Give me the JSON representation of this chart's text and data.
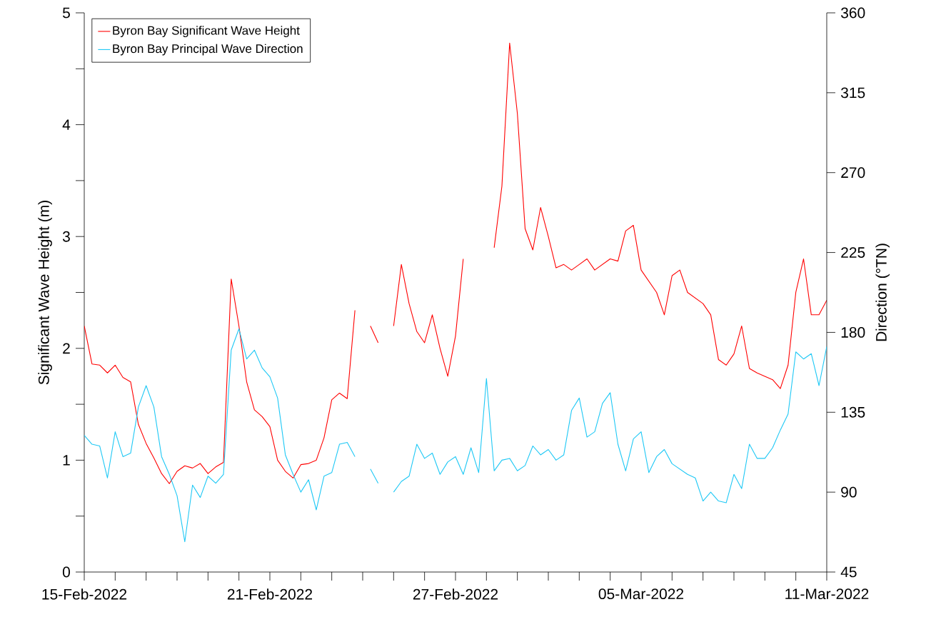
{
  "chart_data": {
    "type": "line",
    "xlabel": null,
    "ylabel": "Significant Wave Height (m)",
    "y2label": "Direction (°TN)",
    "x": [
      "2022-02-15T00:00",
      "2022-02-15T06:00",
      "2022-02-15T12:00",
      "2022-02-15T18:00",
      "2022-02-16T00:00",
      "2022-02-16T06:00",
      "2022-02-16T12:00",
      "2022-02-16T18:00",
      "2022-02-17T00:00",
      "2022-02-17T06:00",
      "2022-02-17T12:00",
      "2022-02-17T18:00",
      "2022-02-18T00:00",
      "2022-02-18T06:00",
      "2022-02-18T12:00",
      "2022-02-18T18:00",
      "2022-02-19T00:00",
      "2022-02-19T06:00",
      "2022-02-19T12:00",
      "2022-02-19T18:00",
      "2022-02-20T00:00",
      "2022-02-20T06:00",
      "2022-02-20T12:00",
      "2022-02-20T18:00",
      "2022-02-21T00:00",
      "2022-02-21T06:00",
      "2022-02-21T12:00",
      "2022-02-21T18:00",
      "2022-02-22T00:00",
      "2022-02-22T06:00",
      "2022-02-22T12:00",
      "2022-02-22T18:00",
      "2022-02-23T00:00",
      "2022-02-23T06:00",
      "2022-02-23T12:00",
      "2022-02-23T18:00",
      "2022-02-24T00:00",
      "2022-02-24T06:00",
      "2022-02-24T12:00",
      "2022-02-24T18:00",
      "2022-02-25T00:00",
      "2022-02-25T06:00",
      "2022-02-25T12:00",
      "2022-02-25T18:00",
      "2022-02-26T00:00",
      "2022-02-26T06:00",
      "2022-02-26T12:00",
      "2022-02-26T18:00",
      "2022-02-27T00:00",
      "2022-02-27T06:00",
      "2022-02-27T12:00",
      "2022-02-27T18:00",
      "2022-02-28T00:00",
      "2022-02-28T06:00",
      "2022-02-28T12:00",
      "2022-02-28T18:00",
      "2022-03-01T00:00",
      "2022-03-01T06:00",
      "2022-03-01T12:00",
      "2022-03-01T18:00",
      "2022-03-02T00:00",
      "2022-03-02T06:00",
      "2022-03-02T12:00",
      "2022-03-02T18:00",
      "2022-03-03T00:00",
      "2022-03-03T06:00",
      "2022-03-03T12:00",
      "2022-03-03T18:00",
      "2022-03-04T00:00",
      "2022-03-04T06:00",
      "2022-03-04T12:00",
      "2022-03-04T18:00",
      "2022-03-05T00:00",
      "2022-03-05T06:00",
      "2022-03-05T12:00",
      "2022-03-05T18:00",
      "2022-03-06T00:00",
      "2022-03-06T06:00",
      "2022-03-06T12:00",
      "2022-03-06T18:00",
      "2022-03-07T00:00",
      "2022-03-07T06:00",
      "2022-03-07T12:00",
      "2022-03-07T18:00",
      "2022-03-08T00:00",
      "2022-03-08T06:00",
      "2022-03-08T12:00",
      "2022-03-08T18:00",
      "2022-03-09T00:00",
      "2022-03-09T06:00",
      "2022-03-09T12:00",
      "2022-03-09T18:00",
      "2022-03-10T00:00",
      "2022-03-10T06:00",
      "2022-03-10T12:00",
      "2022-03-10T18:00",
      "2022-03-11T00:00"
    ],
    "series": [
      {
        "name": "Byron Bay Significant Wave Height",
        "color": "#ff0000",
        "values": [
          2.2,
          1.86,
          1.85,
          1.78,
          1.85,
          1.74,
          1.7,
          1.32,
          1.15,
          1.02,
          0.88,
          0.79,
          0.9,
          0.95,
          0.93,
          0.97,
          0.88,
          0.94,
          0.98,
          2.62,
          2.2,
          1.7,
          1.45,
          1.39,
          1.3,
          1.0,
          0.9,
          0.84,
          0.96,
          0.97,
          1.0,
          1.2,
          1.54,
          1.6,
          1.55,
          2.34,
          null,
          2.2,
          2.05,
          null,
          2.2,
          2.75,
          2.4,
          2.15,
          2.05,
          2.3,
          2.0,
          1.75,
          2.11,
          2.8,
          null,
          null,
          null,
          2.9,
          3.45,
          4.73,
          4.1,
          3.07,
          2.88,
          3.26,
          3.0,
          2.72,
          2.75,
          2.7,
          2.75,
          2.8,
          2.7,
          2.75,
          2.8,
          2.78,
          3.05,
          3.1,
          2.7,
          2.6,
          2.5,
          2.3,
          2.65,
          2.7,
          2.5,
          2.45,
          2.4,
          2.3,
          1.9,
          1.85,
          1.95,
          2.2,
          1.82,
          1.78,
          1.75,
          1.72,
          1.64,
          1.85,
          2.5,
          2.8,
          2.3,
          2.3,
          2.43
        ]
      },
      {
        "name": "Byron Bay Principal Wave Direction",
        "color": "#1ec8f5",
        "axis": "y2",
        "values": [
          122,
          117,
          116,
          98,
          124,
          110,
          112,
          138,
          150,
          138,
          110,
          100,
          88,
          62,
          94,
          87,
          99,
          95,
          100,
          170,
          182,
          165,
          170,
          160,
          155,
          143,
          111,
          100,
          90,
          97,
          80,
          99,
          101,
          117,
          118,
          110,
          null,
          103,
          95,
          null,
          90,
          96,
          99,
          117,
          109,
          112,
          100,
          107,
          110,
          100,
          115,
          101,
          154,
          102,
          108,
          109,
          102,
          105,
          116,
          111,
          114,
          108,
          111,
          136,
          143,
          121,
          124,
          140,
          146,
          117,
          102,
          120,
          124,
          101,
          110,
          114,
          106,
          103,
          100,
          98,
          85,
          90,
          85,
          84,
          100,
          92,
          117,
          109,
          109,
          115,
          125,
          134,
          169,
          165,
          168,
          150,
          172
        ]
      }
    ],
    "xlim": [
      "2022-02-15",
      "2022-03-11"
    ],
    "xticks": [
      {
        "value": "2022-02-15",
        "label": "15-Feb-2022"
      },
      {
        "value": "2022-02-16",
        "label": null
      },
      {
        "value": "2022-02-17",
        "label": null
      },
      {
        "value": "2022-02-18",
        "label": null
      },
      {
        "value": "2022-02-19",
        "label": null
      },
      {
        "value": "2022-02-20",
        "label": null
      },
      {
        "value": "2022-02-21",
        "label": "21-Feb-2022"
      },
      {
        "value": "2022-02-22",
        "label": null
      },
      {
        "value": "2022-02-23",
        "label": null
      },
      {
        "value": "2022-02-24",
        "label": null
      },
      {
        "value": "2022-02-25",
        "label": null
      },
      {
        "value": "2022-02-26",
        "label": null
      },
      {
        "value": "2022-02-27",
        "label": "27-Feb-2022"
      },
      {
        "value": "2022-02-28",
        "label": null
      },
      {
        "value": "2022-03-01",
        "label": null
      },
      {
        "value": "2022-03-02",
        "label": null
      },
      {
        "value": "2022-03-03",
        "label": null
      },
      {
        "value": "2022-03-04",
        "label": null
      },
      {
        "value": "2022-03-05",
        "label": "05-Mar-2022"
      },
      {
        "value": "2022-03-06",
        "label": null
      },
      {
        "value": "2022-03-07",
        "label": null
      },
      {
        "value": "2022-03-08",
        "label": null
      },
      {
        "value": "2022-03-09",
        "label": null
      },
      {
        "value": "2022-03-10",
        "label": null
      },
      {
        "value": "2022-03-11",
        "label": "11-Mar-2022"
      }
    ],
    "ylim": [
      0,
      5
    ],
    "yticks": [
      0,
      {
        "value": 0.5,
        "label": null
      },
      1,
      {
        "value": 1.5,
        "label": null
      },
      2,
      {
        "value": 2.5,
        "label": null
      },
      3,
      {
        "value": 3.5,
        "label": null
      },
      4,
      {
        "value": 4.5,
        "label": null
      },
      5
    ],
    "y2lim": [
      45,
      360
    ],
    "y2ticks": [
      45,
      90,
      135,
      180,
      225,
      270,
      315,
      360
    ],
    "legend": "top left",
    "line_style": "solid"
  }
}
